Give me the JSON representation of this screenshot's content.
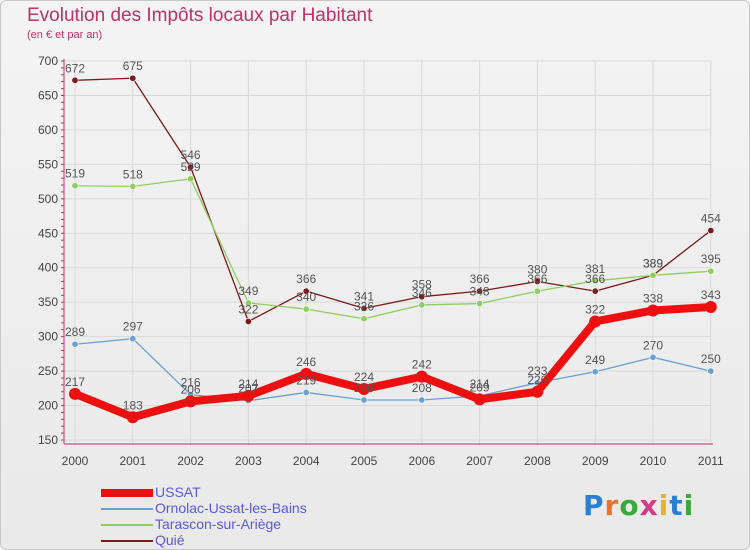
{
  "title": "Evolution des Impôts locaux par Habitant",
  "subtitle": "(en € et par an)",
  "logo": "Proxiti",
  "colors": {
    "title": "#c0306a",
    "grid": "#d9d9d9",
    "axis": "#c0306a",
    "tick_text": "#444444",
    "value_text": "#555555",
    "legend_text": "#5a5ad8"
  },
  "chart_data": {
    "type": "line",
    "title": "Evolution des Impôts locaux par Habitant",
    "subtitle": "(en € et par an)",
    "xlabel": "",
    "ylabel": "",
    "ylim": [
      150,
      700
    ],
    "yticks": [
      150,
      200,
      250,
      300,
      350,
      400,
      450,
      500,
      550,
      600,
      650,
      700
    ],
    "grid": true,
    "categories": [
      "2000",
      "2001",
      "2002",
      "2003",
      "2004",
      "2005",
      "2006",
      "2007",
      "2008",
      "2009",
      "2010",
      "2011"
    ],
    "legend_position": "bottom-left",
    "series": [
      {
        "name": "Quié",
        "color": "#7a1a1a",
        "values": [
          672,
          675,
          546,
          322,
          366,
          341,
          358,
          366,
          380,
          366,
          389,
          454
        ]
      },
      {
        "name": "Tarascon-sur-Ariège",
        "color": "#8ed060",
        "values": [
          519,
          518,
          529,
          349,
          340,
          326,
          346,
          348,
          366,
          381,
          389,
          395
        ]
      },
      {
        "name": "Ornolac-Ussat-les-Bains",
        "color": "#6aa0d4",
        "values": [
          289,
          297,
          216,
          207,
          219,
          208,
          208,
          214,
          233,
          249,
          270,
          250
        ]
      },
      {
        "name": "USSAT",
        "color": "#ee1010",
        "values": [
          217,
          183,
          206,
          214,
          246,
          224,
          242,
          209,
          220,
          322,
          338,
          343
        ]
      }
    ]
  }
}
